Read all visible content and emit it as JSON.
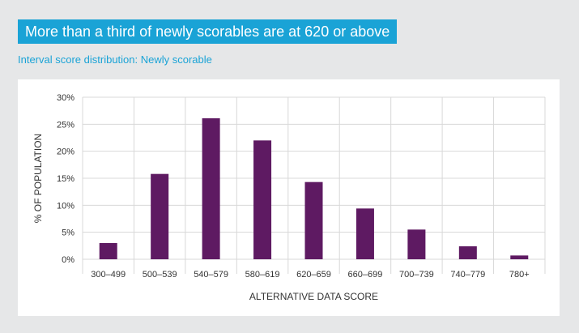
{
  "headline": "More than a third of newly scorables are at 620 or above",
  "subtitle": "Interval score distribution: Newly scorable",
  "colors": {
    "accent": "#1aa3d6",
    "bar": "#5e1a62",
    "grid": "#d8d8d8",
    "panel": "#ffffff",
    "background": "#e6e7e8"
  },
  "chart_data": {
    "type": "bar",
    "categories": [
      "300–499",
      "500–539",
      "540–579",
      "580–619",
      "620–659",
      "660–699",
      "700–739",
      "740–779",
      "780+"
    ],
    "values": [
      3.0,
      15.8,
      26.1,
      22.0,
      14.3,
      9.4,
      5.5,
      2.4,
      0.7
    ],
    "xlabel": "ALTERNATIVE DATA SCORE",
    "ylabel": "% OF POPULATION",
    "ylim": [
      0,
      30
    ],
    "yticks": [
      0,
      5,
      10,
      15,
      20,
      25,
      30
    ],
    "ytick_labels": [
      "0%",
      "5%",
      "10%",
      "15%",
      "20%",
      "25%",
      "30%"
    ],
    "grid": true,
    "legend": "none"
  }
}
